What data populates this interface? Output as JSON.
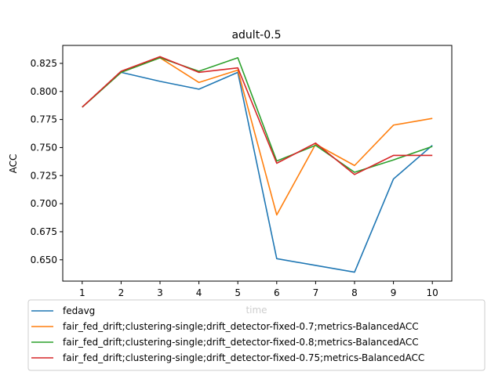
{
  "chart_data": {
    "type": "line",
    "title": "adult-0.5",
    "xlabel": "time",
    "ylabel": "ACC",
    "x": [
      1,
      2,
      3,
      4,
      5,
      6,
      7,
      8,
      9,
      10
    ],
    "xlim": [
      0.5,
      10.5
    ],
    "ylim": [
      0.631,
      0.841
    ],
    "yticks": [
      0.65,
      0.675,
      0.7,
      0.725,
      0.75,
      0.775,
      0.8,
      0.825
    ],
    "ytick_labels": [
      "0.650",
      "0.675",
      "0.700",
      "0.725",
      "0.750",
      "0.775",
      "0.800",
      "0.825"
    ],
    "xtick_labels": [
      "1",
      "2",
      "3",
      "4",
      "5",
      "6",
      "7",
      "8",
      "9",
      "10"
    ],
    "grid": false,
    "legend_position": "bottom",
    "series": [
      {
        "name": "fedavg",
        "color": "#1f77b4",
        "values": [
          0.786,
          0.817,
          0.809,
          0.802,
          0.817,
          0.651,
          0.645,
          0.639,
          0.722,
          0.752
        ]
      },
      {
        "name": "fair_fed_drift;clustering-single;drift_detector-fixed-0.7;metrics-BalancedACC",
        "color": "#ff7f0e",
        "values": [
          0.786,
          0.817,
          0.83,
          0.808,
          0.819,
          0.69,
          0.753,
          0.734,
          0.77,
          0.776
        ]
      },
      {
        "name": "fair_fed_drift;clustering-single;drift_detector-fixed-0.8;metrics-BalancedACC",
        "color": "#2ca02c",
        "values": [
          0.786,
          0.817,
          0.83,
          0.818,
          0.83,
          0.738,
          0.752,
          0.728,
          0.739,
          0.751
        ]
      },
      {
        "name": "fair_fed_drift;clustering-single;drift_detector-fixed-0.75;metrics-BalancedACC",
        "color": "#d62728",
        "values": [
          0.786,
          0.818,
          0.831,
          0.817,
          0.821,
          0.736,
          0.754,
          0.726,
          0.743,
          0.743
        ]
      }
    ]
  }
}
